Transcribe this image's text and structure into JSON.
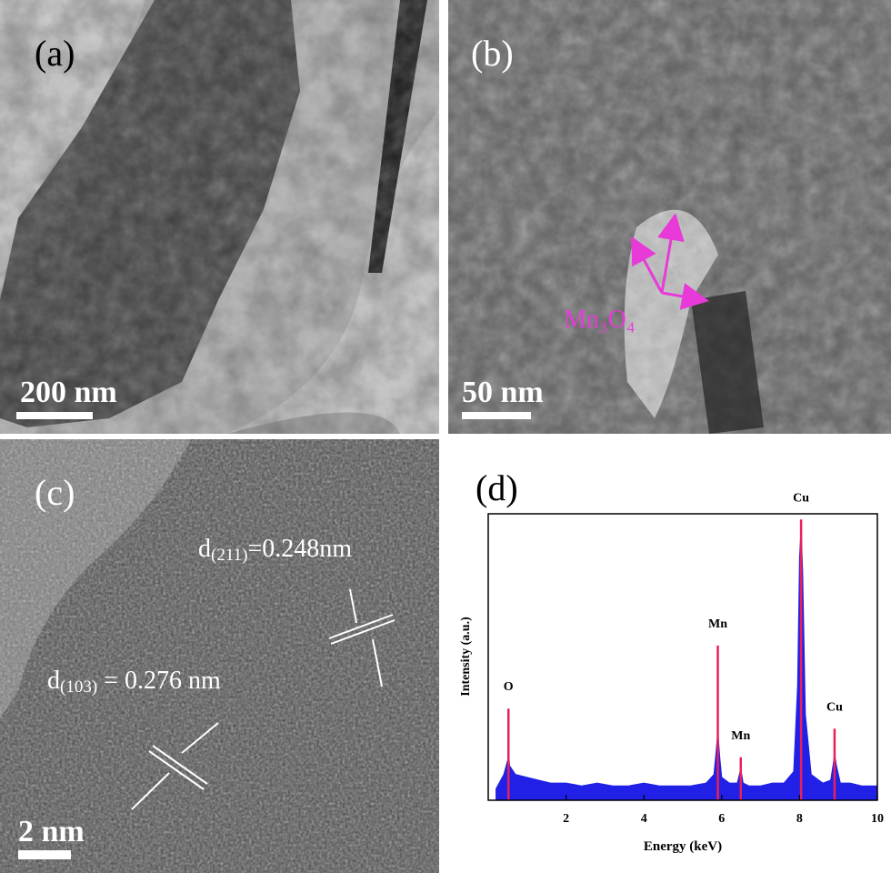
{
  "panels": {
    "a": {
      "label": "(a)",
      "scale_bar": "200 nm"
    },
    "b": {
      "label": "(b)",
      "scale_bar": "50 nm",
      "annotation": "Mn₃O₄"
    },
    "c": {
      "label": "(c)",
      "scale_bar": "2 nm",
      "spacing_1": {
        "symbol": "d",
        "index": "(211)",
        "value": "=0.248nm"
      },
      "spacing_2": {
        "symbol": "d",
        "index": "(103)",
        "value": " = 0.276 nm"
      }
    }
  },
  "chart_data": {
    "type": "line",
    "label": "(d)",
    "x_label": "Energy (keV)",
    "y_label": "Intensity (a.u.)",
    "xlim": [
      0,
      10
    ],
    "xticks": [
      2,
      4,
      6,
      8,
      10
    ],
    "ylim": [
      0,
      100
    ],
    "x": [
      0.2,
      0.4,
      0.5,
      0.52,
      0.55,
      0.7,
      1.0,
      1.3,
      1.6,
      2.0,
      2.4,
      2.8,
      3.2,
      3.6,
      4.0,
      4.4,
      4.8,
      5.2,
      5.6,
      5.8,
      5.85,
      5.9,
      5.95,
      6.0,
      6.2,
      6.4,
      6.49,
      6.55,
      6.7,
      7.0,
      7.3,
      7.6,
      7.85,
      7.95,
      8.0,
      8.04,
      8.08,
      8.15,
      8.3,
      8.6,
      8.8,
      8.87,
      8.9,
      8.95,
      9.05,
      9.3,
      9.6,
      10.0
    ],
    "series": [
      {
        "color": "#2020e6",
        "values": [
          4,
          9,
          14,
          17,
          12,
          9,
          8,
          7,
          6,
          6,
          5,
          6,
          5,
          5,
          6,
          5,
          5,
          5,
          6,
          9,
          16,
          24,
          15,
          8,
          6,
          6,
          11,
          6,
          5,
          5,
          6,
          6,
          10,
          40,
          85,
          95,
          80,
          30,
          9,
          6,
          7,
          13,
          16,
          12,
          6,
          6,
          5,
          5
        ]
      }
    ],
    "peaks": {
      "color": "#e8205a",
      "x": [
        0.52,
        5.9,
        6.49,
        8.04,
        8.9
      ],
      "values": [
        32,
        54,
        15,
        98,
        25
      ],
      "labels": [
        "O",
        "Mn",
        "Mn",
        "Cu",
        "Cu"
      ]
    }
  }
}
